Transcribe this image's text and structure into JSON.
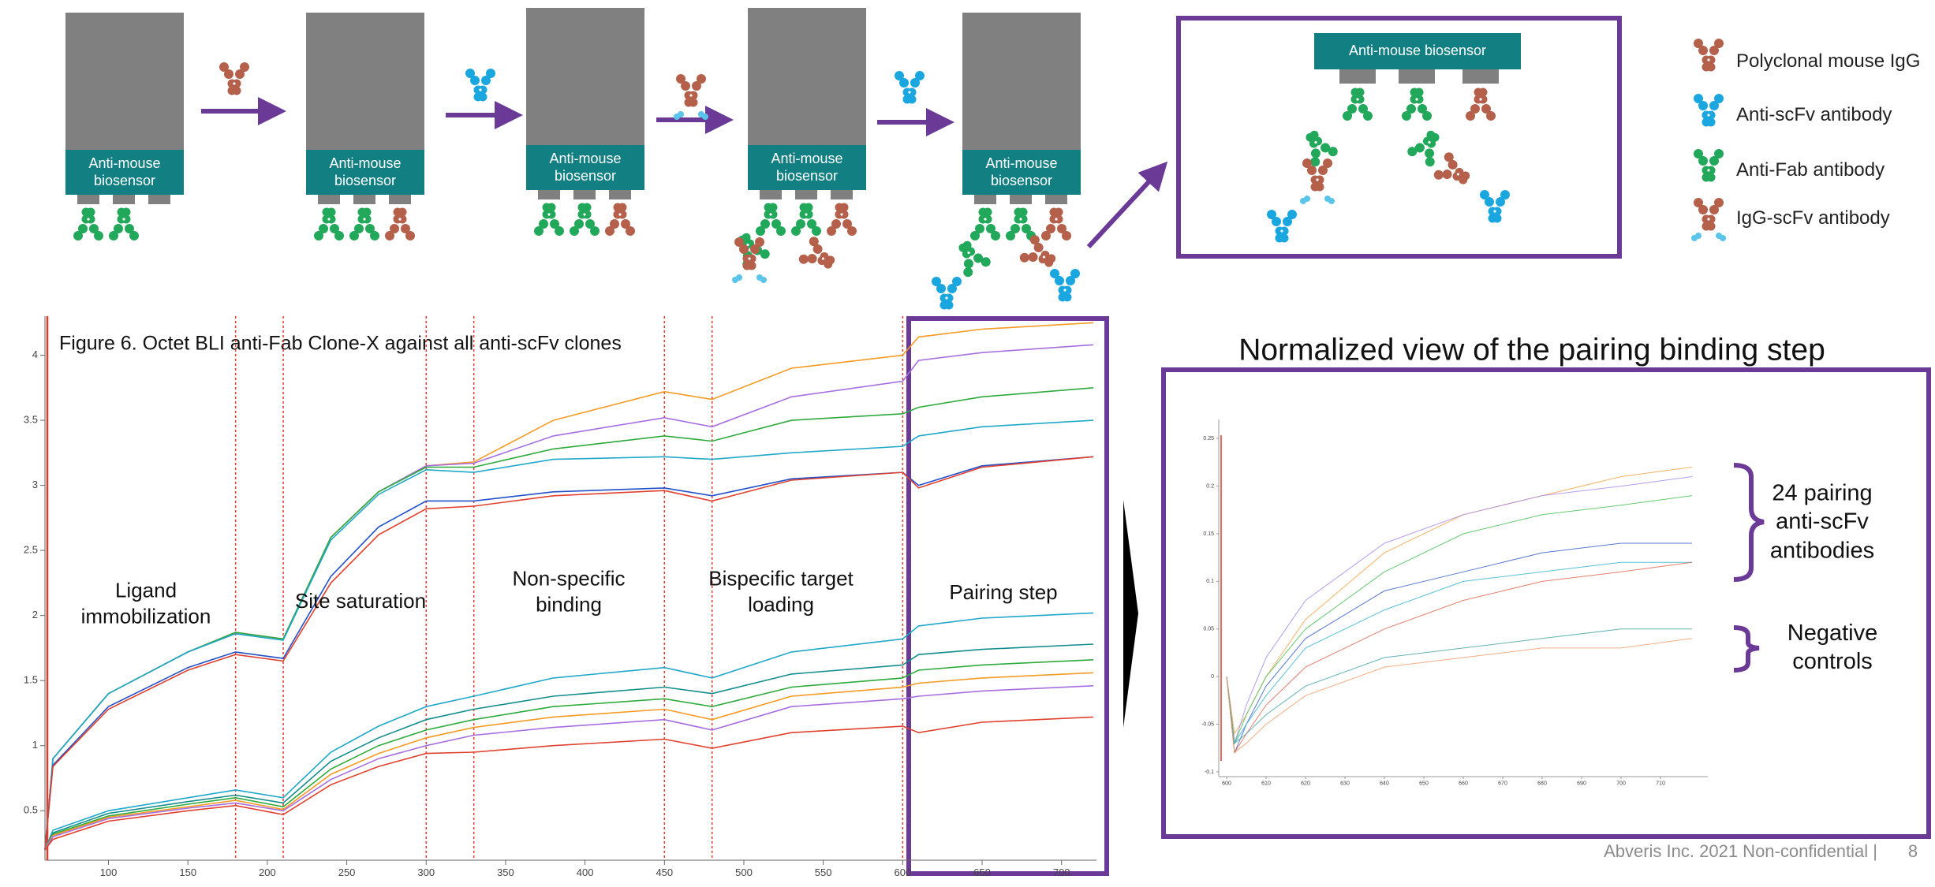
{
  "diagram": {
    "sensor_labels": [
      "Anti-mouse biosensor",
      "Anti-mouse biosensor",
      "Anti-mouse biosensor",
      "Anti-mouse biosensor",
      "Anti-mouse biosensor"
    ],
    "zoom_label": "Anti-mouse biosensor",
    "legend": [
      "Polyclonal mouse IgG",
      "Anti-scFv antibody",
      "Anti-Fab antibody",
      "IgG-scFv antibody"
    ]
  },
  "chart_data": [
    {
      "type": "line",
      "title": "Figure 6. Octet BLI anti-Fab Clone-X against all anti-scFv clones",
      "annotations": [
        "Ligand immobilization",
        "Site saturation",
        "Non-specific binding",
        "Bispecific target loading",
        "Pairing step"
      ],
      "x": [
        60,
        65,
        100,
        150,
        180,
        210,
        240,
        270,
        300,
        330,
        380,
        450,
        480,
        530,
        600,
        610,
        650,
        720
      ],
      "series": [
        {
          "color": "#f59a23",
          "values": [
            0.2,
            0.9,
            1.4,
            1.72,
            1.87,
            1.82,
            2.6,
            2.95,
            3.15,
            3.18,
            3.5,
            3.72,
            3.66,
            3.9,
            4.0,
            4.14,
            4.2,
            4.25
          ]
        },
        {
          "color": "#a66ee0",
          "values": [
            0.2,
            0.9,
            1.4,
            1.72,
            1.87,
            1.82,
            2.6,
            2.95,
            3.15,
            3.17,
            3.38,
            3.52,
            3.45,
            3.68,
            3.8,
            3.96,
            4.02,
            4.08
          ]
        },
        {
          "color": "#2eaa3c",
          "values": [
            0.2,
            0.9,
            1.4,
            1.72,
            1.87,
            1.82,
            2.6,
            2.95,
            3.14,
            3.14,
            3.28,
            3.38,
            3.34,
            3.5,
            3.55,
            3.6,
            3.68,
            3.75
          ]
        },
        {
          "color": "#20a7c9",
          "values": [
            0.2,
            0.9,
            1.4,
            1.72,
            1.86,
            1.81,
            2.58,
            2.93,
            3.12,
            3.1,
            3.2,
            3.22,
            3.2,
            3.25,
            3.3,
            3.38,
            3.45,
            3.5
          ]
        },
        {
          "color": "#2250c8",
          "values": [
            0.2,
            0.85,
            1.3,
            1.6,
            1.72,
            1.67,
            2.3,
            2.68,
            2.88,
            2.88,
            2.95,
            2.98,
            2.92,
            3.05,
            3.1,
            3.0,
            3.15,
            3.22
          ]
        },
        {
          "color": "#e0412e",
          "values": [
            0.2,
            0.84,
            1.28,
            1.58,
            1.7,
            1.65,
            2.25,
            2.62,
            2.82,
            2.84,
            2.92,
            2.96,
            2.88,
            3.04,
            3.1,
            2.98,
            3.14,
            3.22
          ]
        },
        {
          "color": "#20a7c9",
          "values": [
            0.2,
            0.35,
            0.5,
            0.6,
            0.66,
            0.6,
            0.95,
            1.15,
            1.3,
            1.38,
            1.52,
            1.6,
            1.52,
            1.72,
            1.82,
            1.92,
            1.98,
            2.02
          ]
        },
        {
          "color": "#138c8c",
          "values": [
            0.2,
            0.33,
            0.48,
            0.57,
            0.62,
            0.56,
            0.88,
            1.06,
            1.2,
            1.28,
            1.38,
            1.45,
            1.4,
            1.55,
            1.62,
            1.7,
            1.74,
            1.78
          ]
        },
        {
          "color": "#2eaa3c",
          "values": [
            0.2,
            0.32,
            0.46,
            0.55,
            0.6,
            0.53,
            0.82,
            1.0,
            1.12,
            1.2,
            1.3,
            1.36,
            1.3,
            1.45,
            1.52,
            1.58,
            1.62,
            1.66
          ]
        },
        {
          "color": "#f59a23",
          "values": [
            0.2,
            0.31,
            0.45,
            0.53,
            0.58,
            0.51,
            0.78,
            0.94,
            1.06,
            1.14,
            1.22,
            1.28,
            1.2,
            1.38,
            1.45,
            1.48,
            1.52,
            1.56
          ]
        },
        {
          "color": "#a66ee0",
          "values": [
            0.2,
            0.3,
            0.44,
            0.52,
            0.56,
            0.5,
            0.74,
            0.9,
            1.0,
            1.08,
            1.14,
            1.2,
            1.12,
            1.3,
            1.36,
            1.38,
            1.42,
            1.46
          ]
        },
        {
          "color": "#e0412e",
          "values": [
            0.2,
            0.28,
            0.42,
            0.5,
            0.54,
            0.47,
            0.7,
            0.84,
            0.94,
            0.95,
            1.0,
            1.05,
            0.98,
            1.1,
            1.15,
            1.1,
            1.18,
            1.22
          ]
        }
      ],
      "step_boundaries": [
        180,
        210,
        300,
        330,
        450,
        480,
        600
      ],
      "xlim": [
        60,
        722
      ],
      "xticks": [
        100,
        150,
        200,
        250,
        300,
        350,
        400,
        450,
        500,
        550,
        600,
        650,
        700
      ],
      "ylim": [
        0.12,
        4.3
      ],
      "yticks": [
        0.5,
        1,
        1.5,
        2,
        2.5,
        3,
        3.5,
        4
      ]
    },
    {
      "type": "line",
      "title": "Normalized view of the pairing binding step",
      "annotations": [
        "24 pairing anti-scFv antibodies",
        "Negative controls"
      ],
      "x": [
        600,
        602,
        605,
        610,
        620,
        640,
        660,
        680,
        700,
        718
      ],
      "series": [
        {
          "color": "#f5a54a",
          "values": [
            0,
            -0.06,
            -0.04,
            0.0,
            0.06,
            0.13,
            0.17,
            0.19,
            0.21,
            0.22
          ]
        },
        {
          "color": "#a98be8",
          "values": [
            0,
            -0.07,
            -0.03,
            0.02,
            0.08,
            0.14,
            0.17,
            0.19,
            0.2,
            0.21
          ]
        },
        {
          "color": "#4cbf5a",
          "values": [
            0,
            -0.07,
            -0.04,
            0.0,
            0.05,
            0.11,
            0.15,
            0.17,
            0.18,
            0.19
          ]
        },
        {
          "color": "#3a62c8",
          "values": [
            0,
            -0.08,
            -0.05,
            -0.01,
            0.04,
            0.09,
            0.11,
            0.13,
            0.14,
            0.14
          ]
        },
        {
          "color": "#38b5d0",
          "values": [
            0,
            -0.07,
            -0.05,
            -0.02,
            0.03,
            0.07,
            0.1,
            0.11,
            0.12,
            0.12
          ]
        },
        {
          "color": "#e06a55",
          "values": [
            0,
            -0.08,
            -0.06,
            -0.03,
            0.01,
            0.05,
            0.08,
            0.1,
            0.11,
            0.12
          ]
        },
        {
          "color": "#4aa6a6",
          "values": [
            0,
            -0.07,
            -0.06,
            -0.04,
            -0.01,
            0.02,
            0.03,
            0.04,
            0.05,
            0.05
          ]
        },
        {
          "color": "#f0a070",
          "values": [
            0,
            -0.08,
            -0.07,
            -0.05,
            -0.02,
            0.01,
            0.02,
            0.03,
            0.03,
            0.04
          ]
        }
      ],
      "xlim": [
        598,
        722
      ],
      "xticks": [
        600,
        610,
        620,
        630,
        640,
        650,
        660,
        670,
        680,
        690,
        700,
        710
      ],
      "ylim": [
        -0.105,
        0.27
      ],
      "yticks": [
        -0.1,
        -0.05,
        0,
        0.05,
        0.1,
        0.15,
        0.2,
        0.25
      ]
    }
  ],
  "footer": {
    "text": "Abveris Inc. 2021 Non-confidential |",
    "page": "8"
  }
}
